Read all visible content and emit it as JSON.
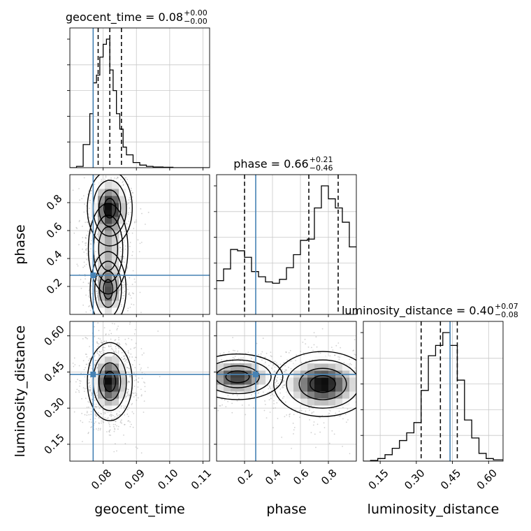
{
  "chart_data": {
    "type": "corner",
    "parameters": [
      "geocent_time",
      "phase",
      "luminosity_distance"
    ],
    "truths": {
      "geocent_time": 0.077,
      "phase": 0.28,
      "luminosity_distance": 0.44
    },
    "titles": [
      {
        "param": "geocent_time",
        "text": "geocent_time = 0.08",
        "sup": "+0.00",
        "sub": "−0.00"
      },
      {
        "param": "phase",
        "text": "phase = 0.66",
        "sup": "+0.21",
        "sub": "−0.46"
      },
      {
        "param": "luminosity_distance",
        "text": "luminosity_distance = 0.40",
        "sup": "+0.07",
        "sub": "−0.08"
      }
    ],
    "axes": {
      "geocent_time": {
        "label": "geocent_time",
        "range": [
          0.07,
          0.112
        ],
        "ticks": [
          0.08,
          0.09,
          0.1,
          0.11
        ],
        "tick_labels": [
          "0.08",
          "0.09",
          "0.10",
          "0.11"
        ]
      },
      "phase": {
        "label": "phase",
        "range": [
          0.0,
          1.0
        ],
        "ticks": [
          0.2,
          0.4,
          0.6,
          0.8
        ],
        "tick_labels": [
          "0.2",
          "0.4",
          "0.6",
          "0.8"
        ]
      },
      "luminosity_distance": {
        "label": "luminosity_distance",
        "range": [
          0.08,
          0.66
        ],
        "ticks": [
          0.15,
          0.3,
          0.45,
          0.6
        ],
        "tick_labels": [
          "0.15",
          "0.30",
          "0.45",
          "0.60"
        ]
      }
    },
    "quantiles": {
      "geocent_time": [
        0.0785,
        0.082,
        0.0855
      ],
      "phase": [
        0.2,
        0.66,
        0.87
      ],
      "luminosity_distance": [
        0.32,
        0.4,
        0.47
      ]
    },
    "histograms": {
      "geocent_time": {
        "edges": [
          0.07,
          0.072,
          0.074,
          0.076,
          0.077,
          0.078,
          0.079,
          0.08,
          0.081,
          0.082,
          0.083,
          0.084,
          0.085,
          0.086,
          0.087,
          0.089,
          0.091,
          0.093,
          0.095,
          0.098,
          0.101,
          0.104,
          0.112
        ],
        "counts": [
          0,
          0.01,
          0.18,
          0.42,
          0.66,
          0.72,
          0.86,
          0.96,
          1.0,
          0.76,
          0.6,
          0.42,
          0.3,
          0.16,
          0.1,
          0.04,
          0.02,
          0.01,
          0.005,
          0.003,
          0,
          0
        ]
      },
      "phase": {
        "edges": [
          0.0,
          0.05,
          0.1,
          0.15,
          0.2,
          0.25,
          0.3,
          0.35,
          0.4,
          0.45,
          0.5,
          0.55,
          0.6,
          0.65,
          0.7,
          0.75,
          0.8,
          0.85,
          0.9,
          0.95,
          1.0
        ],
        "counts": [
          0.26,
          0.35,
          0.5,
          0.49,
          0.44,
          0.33,
          0.29,
          0.25,
          0.24,
          0.27,
          0.36,
          0.46,
          0.57,
          0.58,
          0.82,
          0.99,
          0.89,
          0.82,
          0.71,
          0.52
        ]
      },
      "luminosity_distance": {
        "edges": [
          0.08,
          0.11,
          0.14,
          0.17,
          0.2,
          0.23,
          0.26,
          0.29,
          0.32,
          0.35,
          0.38,
          0.41,
          0.44,
          0.47,
          0.5,
          0.53,
          0.56,
          0.59,
          0.62,
          0.66
        ],
        "counts": [
          0,
          0.005,
          0.02,
          0.05,
          0.1,
          0.16,
          0.22,
          0.3,
          0.55,
          0.82,
          0.9,
          1.0,
          0.9,
          0.63,
          0.32,
          0.18,
          0.06,
          0.02,
          0.01
        ]
      }
    },
    "density_blobs": {
      "geocent_time|phase": [
        {
          "x": 0.082,
          "y": 0.76,
          "sx": 0.0025,
          "sy": 0.1,
          "w": 1.0
        },
        {
          "x": 0.0815,
          "y": 0.18,
          "sx": 0.002,
          "sy": 0.1,
          "w": 0.75
        },
        {
          "x": 0.0815,
          "y": 0.47,
          "sx": 0.0022,
          "sy": 0.12,
          "w": 0.4
        }
      ],
      "geocent_time|luminosity_distance": [
        {
          "x": 0.082,
          "y": 0.41,
          "sx": 0.0025,
          "sy": 0.06,
          "w": 1.0
        }
      ],
      "phase|luminosity_distance": [
        {
          "x": 0.76,
          "y": 0.4,
          "sx": 0.13,
          "sy": 0.05,
          "w": 1.0
        },
        {
          "x": 0.15,
          "y": 0.43,
          "sx": 0.12,
          "sy": 0.035,
          "w": 0.85
        }
      ]
    },
    "grid": true,
    "colors": {
      "truth": "#4682b4",
      "contour": "#000000",
      "grid": "#c8c8c8",
      "scatter": "#9a9a9a"
    }
  }
}
